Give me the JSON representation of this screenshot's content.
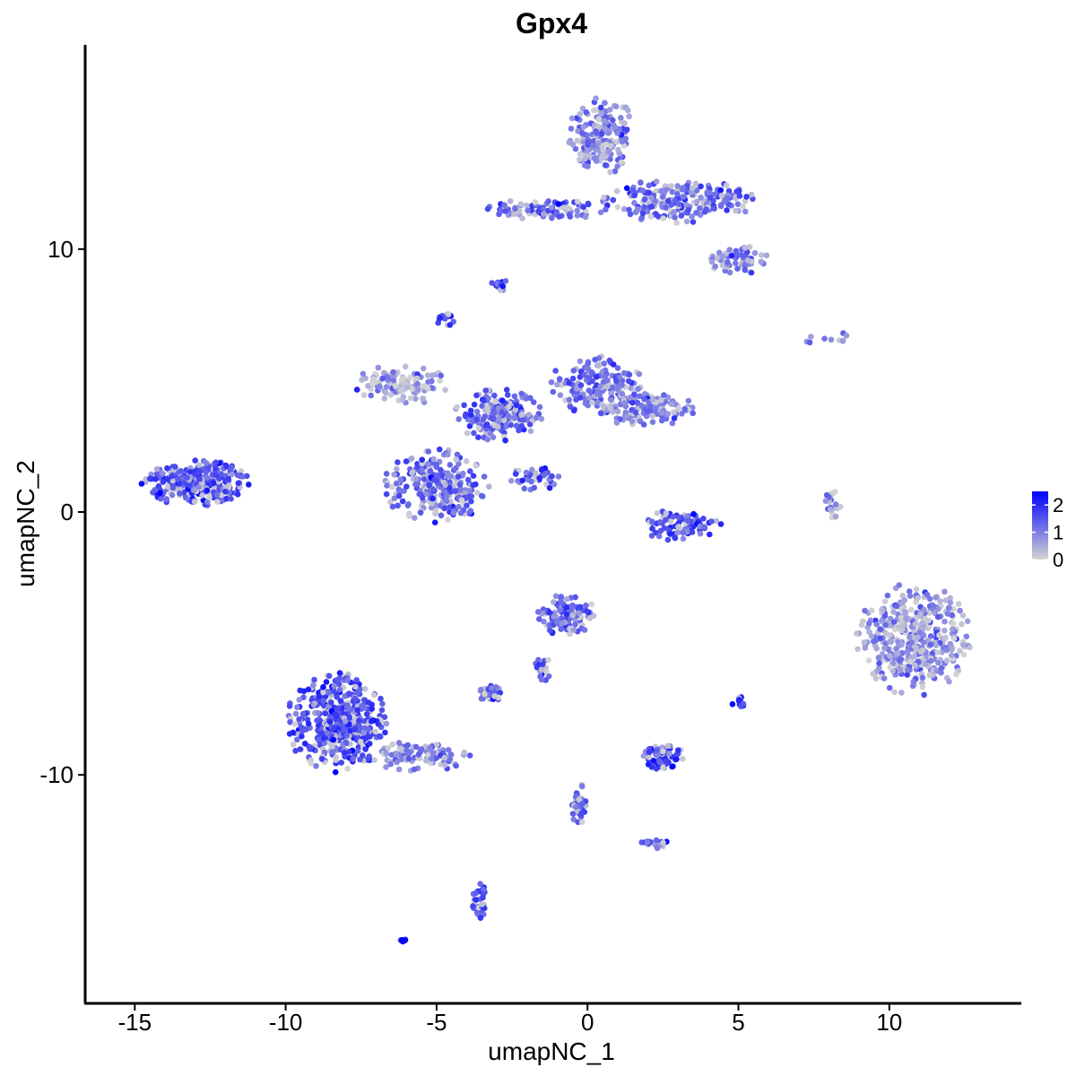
{
  "chart_data": {
    "type": "scatter",
    "title": "Gpx4",
    "xlabel": "umapNC_1",
    "ylabel": "umapNC_2",
    "xlim": [
      -16.5,
      14.3
    ],
    "ylim": [
      -18.2,
      17.6
    ],
    "x_ticks": [
      -15,
      -10,
      -5,
      0,
      5,
      10
    ],
    "y_ticks": [
      -10,
      0,
      10
    ],
    "grid": false,
    "color_scale": {
      "low": "#d3d3d3",
      "high": "#0000ff",
      "range": [
        0,
        2.5
      ],
      "ticks": [
        0,
        1,
        2
      ],
      "legend_position": "right"
    },
    "clusters": [
      {
        "cx": 0.5,
        "cy": 14.3,
        "rx": 1.2,
        "ry": 1.5,
        "n": 200,
        "expr": 0.9
      },
      {
        "cx": 3.0,
        "cy": 11.8,
        "rx": 2.6,
        "ry": 0.9,
        "n": 220,
        "expr": 1.2
      },
      {
        "cx": -1.5,
        "cy": 11.5,
        "rx": 2.2,
        "ry": 0.4,
        "n": 90,
        "expr": 1.2
      },
      {
        "cx": 5.0,
        "cy": 9.6,
        "rx": 1.0,
        "ry": 0.6,
        "n": 70,
        "expr": 1.0
      },
      {
        "cx": -2.9,
        "cy": 8.6,
        "rx": 0.3,
        "ry": 0.3,
        "n": 15,
        "expr": 1.7
      },
      {
        "cx": -4.7,
        "cy": 7.3,
        "rx": 0.3,
        "ry": 0.3,
        "n": 15,
        "expr": 1.6
      },
      {
        "cx": -6.2,
        "cy": 4.8,
        "rx": 1.6,
        "ry": 0.8,
        "n": 120,
        "expr": 0.6
      },
      {
        "cx": -3.0,
        "cy": 3.7,
        "rx": 1.5,
        "ry": 1.0,
        "n": 180,
        "expr": 1.3
      },
      {
        "cx": 0.3,
        "cy": 4.8,
        "rx": 1.6,
        "ry": 1.2,
        "n": 160,
        "expr": 1.2
      },
      {
        "cx": 1.9,
        "cy": 3.9,
        "rx": 1.7,
        "ry": 0.7,
        "n": 130,
        "expr": 1.0
      },
      {
        "cx": -5.0,
        "cy": 1.0,
        "rx": 1.8,
        "ry": 1.4,
        "n": 260,
        "expr": 1.3
      },
      {
        "cx": -1.7,
        "cy": 1.3,
        "rx": 0.9,
        "ry": 0.5,
        "n": 40,
        "expr": 1.5
      },
      {
        "cx": 3.1,
        "cy": -0.5,
        "rx": 1.4,
        "ry": 0.6,
        "n": 90,
        "expr": 1.6
      },
      {
        "cx": 8.1,
        "cy": 0.3,
        "rx": 0.3,
        "ry": 0.6,
        "n": 20,
        "expr": 0.8
      },
      {
        "cx": -13.0,
        "cy": 1.1,
        "rx": 1.8,
        "ry": 0.9,
        "n": 300,
        "expr": 1.5
      },
      {
        "cx": 10.8,
        "cy": -4.8,
        "rx": 1.9,
        "ry": 2.2,
        "n": 420,
        "expr": 0.8
      },
      {
        "cx": -0.7,
        "cy": -3.9,
        "rx": 1.0,
        "ry": 0.9,
        "n": 110,
        "expr": 1.3
      },
      {
        "cx": -8.3,
        "cy": -8.0,
        "rx": 1.7,
        "ry": 1.9,
        "n": 420,
        "expr": 1.6
      },
      {
        "cx": -5.5,
        "cy": -9.3,
        "rx": 1.7,
        "ry": 0.6,
        "n": 100,
        "expr": 1.0
      },
      {
        "cx": 2.5,
        "cy": -9.3,
        "rx": 0.7,
        "ry": 0.5,
        "n": 70,
        "expr": 1.7
      },
      {
        "cx": -3.2,
        "cy": -6.9,
        "rx": 0.5,
        "ry": 0.3,
        "n": 30,
        "expr": 1.4
      },
      {
        "cx": -1.5,
        "cy": -6.0,
        "rx": 0.3,
        "ry": 0.6,
        "n": 20,
        "expr": 1.4
      },
      {
        "cx": 5.0,
        "cy": -7.3,
        "rx": 0.2,
        "ry": 0.3,
        "n": 15,
        "expr": 1.8
      },
      {
        "cx": -0.3,
        "cy": -11.0,
        "rx": 0.3,
        "ry": 1.0,
        "n": 40,
        "expr": 1.3
      },
      {
        "cx": 2.2,
        "cy": -12.6,
        "rx": 0.5,
        "ry": 0.2,
        "n": 25,
        "expr": 1.2
      },
      {
        "cx": -3.6,
        "cy": -14.8,
        "rx": 0.3,
        "ry": 0.7,
        "n": 30,
        "expr": 1.6
      },
      {
        "cx": -6.1,
        "cy": -16.3,
        "rx": 0.1,
        "ry": 0.1,
        "n": 8,
        "expr": 2.4
      },
      {
        "cx": 8.2,
        "cy": 6.6,
        "rx": 1.2,
        "ry": 0.3,
        "n": 10,
        "expr": 0.8
      }
    ]
  }
}
